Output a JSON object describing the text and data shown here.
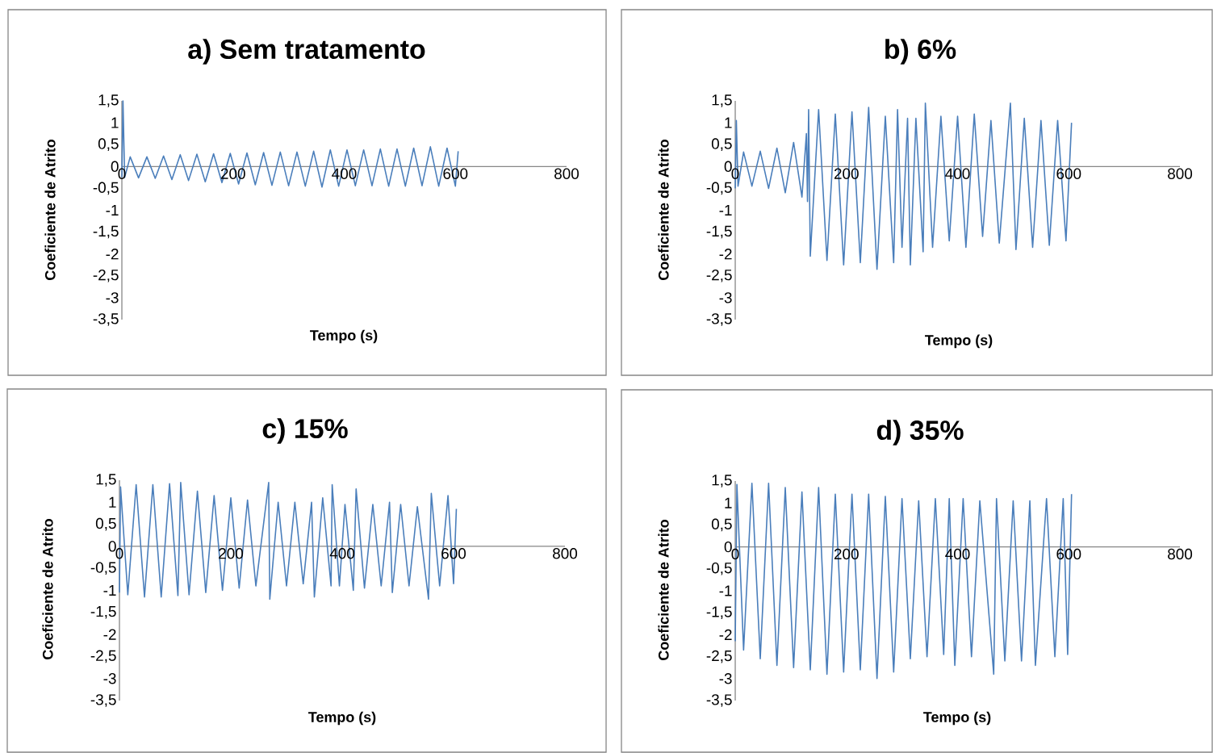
{
  "chart_data": [
    {
      "type": "line",
      "title": "a) Sem tratamento",
      "xlabel": "Tempo (s)",
      "ylabel": "Coeficiente de Atrito",
      "xlim": [
        0,
        800
      ],
      "ylim": [
        -3.5,
        1.5
      ],
      "xticks": [
        0,
        200,
        400,
        600,
        800
      ],
      "yticks": [
        {
          "value": 1.5,
          "label": "1,5"
        },
        1,
        {
          "value": 0.5,
          "label": "0,5"
        },
        0,
        {
          "value": -0.5,
          "label": "-0,5"
        },
        -1,
        {
          "value": -1.5,
          "label": "-1,5"
        },
        -2,
        {
          "value": -2.5,
          "label": "-2,5"
        },
        -3,
        {
          "value": -3.5,
          "label": "-3,5"
        }
      ],
      "series": [
        {
          "color": "#4a7ebb",
          "x": [
            0,
            2,
            5,
            15,
            30,
            45,
            60,
            75,
            90,
            105,
            120,
            135,
            150,
            165,
            180,
            195,
            210,
            225,
            240,
            255,
            270,
            285,
            300,
            315,
            330,
            345,
            360,
            375,
            390,
            405,
            420,
            435,
            450,
            465,
            480,
            495,
            510,
            525,
            540,
            555,
            570,
            585,
            600,
            605
          ],
          "values": [
            -0.25,
            1.5,
            -0.25,
            0.22,
            -0.26,
            0.22,
            -0.27,
            0.24,
            -0.3,
            0.27,
            -0.32,
            0.28,
            -0.35,
            0.29,
            -0.37,
            0.3,
            -0.4,
            0.31,
            -0.42,
            0.32,
            -0.43,
            0.33,
            -0.44,
            0.33,
            -0.45,
            0.35,
            -0.47,
            0.38,
            -0.45,
            0.38,
            -0.44,
            0.38,
            -0.44,
            0.4,
            -0.45,
            0.4,
            -0.45,
            0.42,
            -0.44,
            0.45,
            -0.45,
            0.42,
            -0.45,
            0.35
          ]
        }
      ]
    },
    {
      "type": "line",
      "title": "b) 6%",
      "xlabel": "Tempo (s)",
      "ylabel": "Coeficiente de Atrito",
      "xlim": [
        0,
        800
      ],
      "ylim": [
        -3.5,
        1.5
      ],
      "xticks": [
        0,
        200,
        400,
        600,
        800
      ],
      "yticks": [
        {
          "value": 1.5,
          "label": "1,5"
        },
        1,
        {
          "value": 0.5,
          "label": "0,5"
        },
        0,
        {
          "value": -0.5,
          "label": "-0,5"
        },
        -1,
        {
          "value": -1.5,
          "label": "-1,5"
        },
        -2,
        {
          "value": -2.5,
          "label": "-2,5"
        },
        -3,
        {
          "value": -3.5,
          "label": "-3,5"
        }
      ],
      "series": [
        {
          "color": "#4a7ebb",
          "x": [
            0,
            2,
            5,
            15,
            30,
            45,
            60,
            75,
            90,
            105,
            120,
            128,
            130,
            132,
            135,
            150,
            165,
            180,
            195,
            210,
            225,
            240,
            255,
            270,
            285,
            292,
            300,
            310,
            315,
            325,
            338,
            342,
            355,
            370,
            385,
            400,
            415,
            430,
            445,
            460,
            475,
            495,
            505,
            520,
            535,
            550,
            565,
            580,
            595,
            605
          ],
          "values": [
            -0.5,
            1.05,
            -0.45,
            0.33,
            -0.45,
            0.35,
            -0.5,
            0.42,
            -0.6,
            0.55,
            -0.7,
            0.75,
            -0.8,
            1.3,
            -2.05,
            1.3,
            -2.15,
            1.2,
            -2.25,
            1.25,
            -2.2,
            1.35,
            -2.35,
            1.15,
            -2.2,
            1.3,
            -1.85,
            1.1,
            -2.25,
            1.1,
            -1.95,
            1.45,
            -1.85,
            1.15,
            -1.7,
            1.15,
            -1.85,
            1.2,
            -1.6,
            1.05,
            -1.75,
            1.45,
            -1.9,
            1.1,
            -1.85,
            1.05,
            -1.8,
            1.05,
            -1.7,
            1.0
          ]
        }
      ]
    },
    {
      "type": "line",
      "title": "c) 15%",
      "xlabel": "Tempo (s)",
      "ylabel": "Coeficiente de Atrito",
      "xlim": [
        0,
        800
      ],
      "ylim": [
        -3.5,
        1.5
      ],
      "xticks": [
        0,
        200,
        400,
        600,
        800
      ],
      "yticks": [
        {
          "value": 1.5,
          "label": "1,5"
        },
        1,
        {
          "value": 0.5,
          "label": "0,5"
        },
        0,
        {
          "value": -0.5,
          "label": "-0,5"
        },
        -1,
        {
          "value": -1.5,
          "label": "-1,5"
        },
        -2,
        {
          "value": -2.5,
          "label": "-2,5"
        },
        -3,
        {
          "value": -3.5,
          "label": "-3,5"
        }
      ],
      "series": [
        {
          "color": "#4a7ebb",
          "x": [
            0,
            2,
            15,
            30,
            45,
            60,
            75,
            90,
            105,
            110,
            125,
            140,
            155,
            170,
            185,
            200,
            215,
            230,
            245,
            268,
            270,
            285,
            300,
            315,
            330,
            345,
            350,
            365,
            380,
            382,
            395,
            405,
            420,
            425,
            440,
            455,
            470,
            485,
            490,
            505,
            520,
            535,
            555,
            560,
            575,
            590,
            600,
            605
          ],
          "values": [
            -1.05,
            1.35,
            -1.1,
            1.4,
            -1.15,
            1.4,
            -1.15,
            1.42,
            -1.12,
            1.45,
            -1.1,
            1.25,
            -1.05,
            1.15,
            -1.0,
            1.1,
            -0.95,
            1.05,
            -0.9,
            1.45,
            -1.2,
            1.0,
            -0.9,
            1.0,
            -0.85,
            1.0,
            -1.15,
            1.1,
            -0.9,
            1.4,
            -0.9,
            0.95,
            -1.0,
            1.3,
            -0.95,
            0.95,
            -0.9,
            1.0,
            -1.05,
            0.95,
            -0.9,
            0.9,
            -1.2,
            1.2,
            -0.9,
            1.15,
            -0.85,
            0.85
          ]
        }
      ]
    },
    {
      "type": "line",
      "title": "d) 35%",
      "xlabel": "Tempo (s)",
      "ylabel": "Coeficiente de Atrito",
      "xlim": [
        0,
        800
      ],
      "ylim": [
        -3.5,
        1.5
      ],
      "xticks": [
        0,
        200,
        400,
        600,
        800
      ],
      "yticks": [
        {
          "value": 1.5,
          "label": "1,5"
        },
        1,
        {
          "value": 0.5,
          "label": "0,5"
        },
        0,
        {
          "value": -0.5,
          "label": "-0,5"
        },
        -1,
        {
          "value": -1.5,
          "label": "-1,5"
        },
        -2,
        {
          "value": -2.5,
          "label": "-2,5"
        },
        -3,
        {
          "value": -3.5,
          "label": "-3,5"
        }
      ],
      "series": [
        {
          "color": "#4a7ebb",
          "x": [
            0,
            3,
            15,
            30,
            45,
            60,
            75,
            90,
            105,
            120,
            135,
            150,
            165,
            180,
            195,
            210,
            225,
            240,
            255,
            270,
            285,
            300,
            315,
            330,
            345,
            360,
            375,
            385,
            395,
            410,
            425,
            440,
            465,
            470,
            485,
            500,
            515,
            530,
            540,
            560,
            575,
            590,
            598,
            605
          ],
          "values": [
            -2.15,
            1.42,
            -2.35,
            1.45,
            -2.55,
            1.45,
            -2.7,
            1.35,
            -2.75,
            1.25,
            -2.8,
            1.35,
            -2.9,
            1.2,
            -2.85,
            1.2,
            -2.8,
            1.2,
            -3.0,
            1.15,
            -2.85,
            1.1,
            -2.55,
            1.05,
            -2.5,
            1.1,
            -2.45,
            1.1,
            -2.7,
            1.1,
            -2.5,
            1.05,
            -2.9,
            1.1,
            -2.6,
            1.05,
            -2.6,
            1.05,
            -2.7,
            1.1,
            -2.5,
            1.1,
            -2.45,
            1.2
          ]
        }
      ]
    }
  ]
}
